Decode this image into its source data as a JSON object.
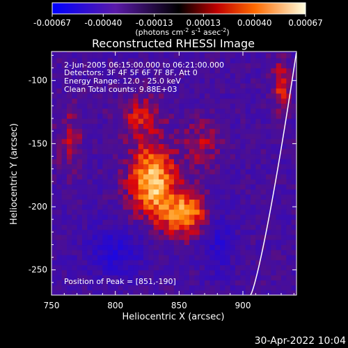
{
  "chart_data": {
    "type": "heatmap",
    "title": "Reconstructed RHESSI Image",
    "xlabel": "Heliocentric X (arcsec)",
    "ylabel": "Heliocentric Y (arcsec)",
    "xlim": [
      750,
      942
    ],
    "ylim": [
      -270,
      -77
    ],
    "x_ticks": [
      750,
      800,
      850,
      900
    ],
    "x_tick_labels": [
      "750",
      "800",
      "850",
      "900"
    ],
    "y_ticks": [
      -100,
      -150,
      -200,
      -250
    ],
    "y_tick_labels": [
      "-100",
      "-150",
      "-200",
      "-250"
    ],
    "colorbar": {
      "range": [
        -0.00067,
        0.00067
      ],
      "ticks": [
        -0.00067,
        -0.0004,
        -0.00013,
        0.00013,
        0.0004,
        0.00067
      ],
      "tick_labels": [
        "-0.00067",
        "-0.00040",
        "-0.00013",
        "0.00013",
        "0.00040",
        "0.00067"
      ],
      "units_label": "(photons cm",
      "units_exp1": "-2",
      "units_mid": " s",
      "units_exp2": "-1",
      "units_end": " asec",
      "units_exp3": "-2",
      "units_close": ")"
    },
    "annotations": {
      "time_range": "2-Jun-2005 06:15:00.000 to 06:21:00.000",
      "detectors": "Detectors: 3F 4F 5F 6F 7F 8F, Att 0",
      "energy": "Energy Range: 12.0 - 25.0 keV",
      "clean": "Clean    Total counts: 9.88E+03",
      "peak": "Position of Peak = [851,-190]"
    },
    "sources": [
      {
        "x": 829,
        "y": -178,
        "amplitude": 1.0,
        "sigma_x": 13,
        "sigma_y": 20
      },
      {
        "x": 855,
        "y": -205,
        "amplitude": 0.85,
        "sigma_x": 14,
        "sigma_y": 12
      },
      {
        "x": 820,
        "y": -128,
        "amplitude": 0.45,
        "sigma_x": 12,
        "sigma_y": 12
      },
      {
        "x": 868,
        "y": -150,
        "amplitude": 0.35,
        "sigma_x": 10,
        "sigma_y": 14
      },
      {
        "x": 930,
        "y": -105,
        "amplitude": 0.5,
        "sigma_x": 5,
        "sigma_y": 15
      },
      {
        "x": 765,
        "y": -145,
        "amplitude": 0.35,
        "sigma_x": 7,
        "sigma_y": 18
      },
      {
        "x": 800,
        "y": -235,
        "amplitude": -0.45,
        "sigma_x": 15,
        "sigma_y": 14
      },
      {
        "x": 880,
        "y": -225,
        "amplitude": -0.4,
        "sigma_x": 8,
        "sigma_y": 18
      }
    ],
    "limb": true
  },
  "footer": {
    "timestamp": "30-Apr-2022 10:04"
  }
}
